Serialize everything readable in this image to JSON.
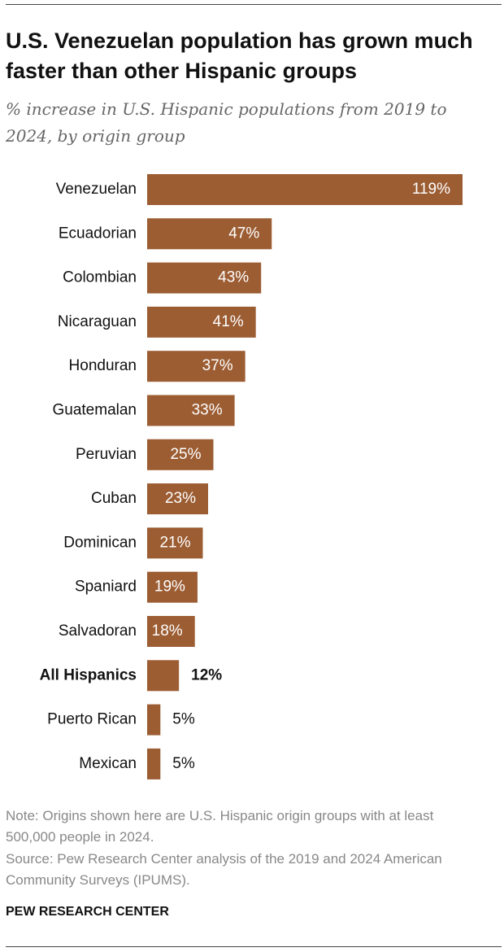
{
  "chart_data": {
    "type": "hbar",
    "title": "U.S. Venezuelan population has grown much faster than other Hispanic groups",
    "subtitle": "% increase in U.S. Hispanic populations from 2019 to 2024, by origin group",
    "categories": [
      "Venezuelan",
      "Ecuadorian",
      "Colombian",
      "Nicaraguan",
      "Honduran",
      "Guatemalan",
      "Peruvian",
      "Cuban",
      "Dominican",
      "Spaniard",
      "Salvadoran",
      "All Hispanics",
      "Puerto Rican",
      "Mexican"
    ],
    "values": [
      119,
      47,
      43,
      41,
      37,
      33,
      25,
      23,
      21,
      19,
      18,
      12,
      5,
      5
    ],
    "value_labels": [
      "119%",
      "47%",
      "43%",
      "41%",
      "37%",
      "33%",
      "25%",
      "23%",
      "21%",
      "19%",
      "18%",
      "12%",
      "5%",
      "5%"
    ],
    "color": "#9c5d33",
    "emphasis": 11,
    "note": "Note: Origins shown here are U.S. Hispanic origin groups with at least 500,000 people in 2024.",
    "source": "Source: Pew Research Center analysis of the 2019 and 2024 American Community Surveys (IPUMS).",
    "credit": "PEW RESEARCH CENTER"
  }
}
